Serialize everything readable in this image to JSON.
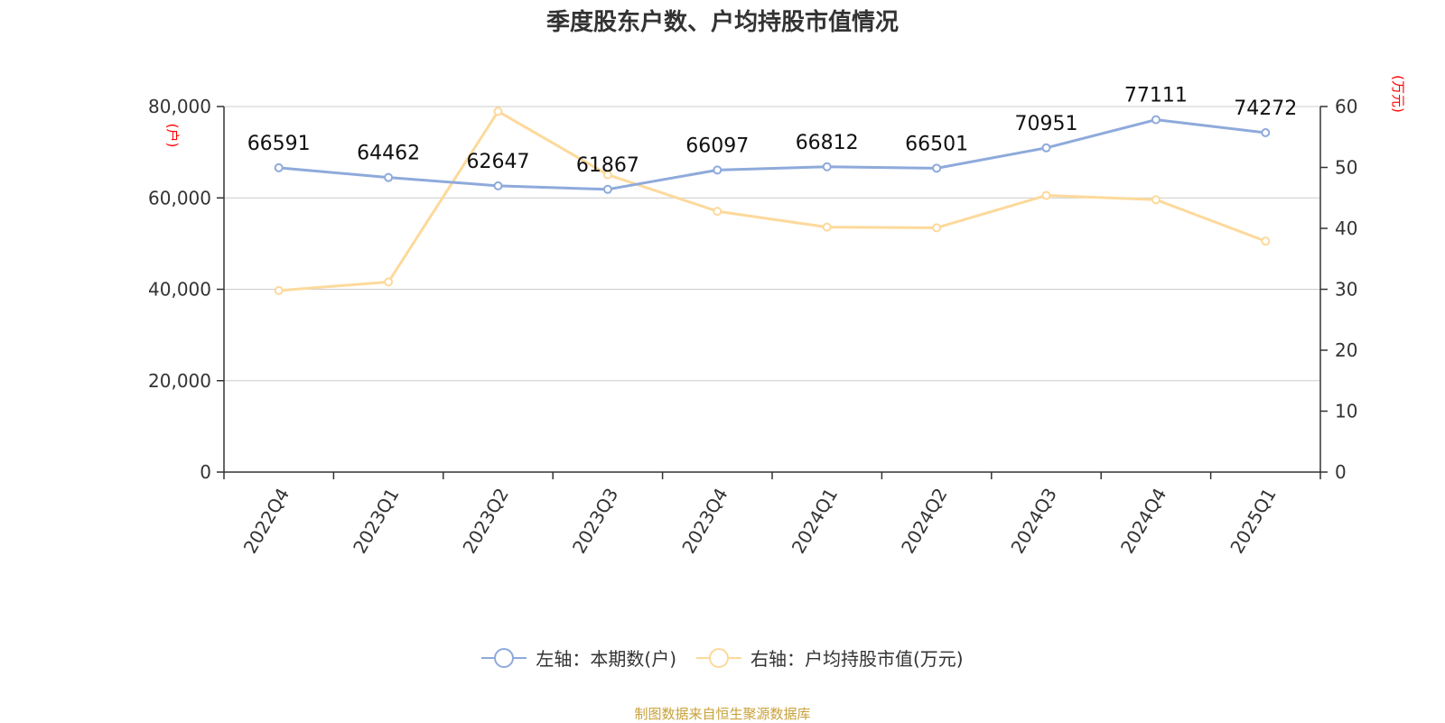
{
  "title": "季度股东户数、户均持股市值情况",
  "legend": {
    "left": "左轴：本期数(户)",
    "right": "右轴：户均持股市值(万元)"
  },
  "source": "制图数据来自恒生聚源数据库",
  "colors": {
    "left_series": "#8eaadb",
    "right_series": "#fdd99b",
    "unit": "#ff0000"
  },
  "chart_data": {
    "type": "line",
    "title": "季度股东户数、户均持股市值情况",
    "categories": [
      "2022Q4",
      "2023Q1",
      "2023Q2",
      "2023Q3",
      "2023Q4",
      "2024Q1",
      "2024Q2",
      "2024Q3",
      "2024Q4",
      "2025Q1"
    ],
    "y_left": {
      "unit": "(户)",
      "range": [
        0,
        80000
      ],
      "ticks": [
        "0",
        "20,000",
        "40,000",
        "60,000",
        "80,000"
      ],
      "tick_values": [
        0,
        20000,
        40000,
        60000,
        80000
      ]
    },
    "y_right": {
      "unit": "(万元)",
      "range": [
        0,
        60
      ],
      "ticks": [
        "0",
        "10",
        "20",
        "30",
        "40",
        "50",
        "60"
      ],
      "tick_values": [
        0,
        10,
        20,
        30,
        40,
        50,
        60
      ]
    },
    "grid": true,
    "legend_position": "bottom",
    "series": [
      {
        "name": "左轴：本期数(户)",
        "axis": "left",
        "values": [
          66591,
          64462,
          62647,
          61867,
          66097,
          66812,
          66501,
          70951,
          77111,
          74272
        ],
        "labels": [
          "66591",
          "64462",
          "62647",
          "61867",
          "66097",
          "66812",
          "66501",
          "70951",
          "77111",
          "74272"
        ]
      },
      {
        "name": "右轴：户均持股市值(万元)",
        "axis": "right",
        "values": [
          29.8,
          31.2,
          59.2,
          48.8,
          42.8,
          40.2,
          40.1,
          45.4,
          44.7,
          37.9
        ]
      }
    ]
  }
}
